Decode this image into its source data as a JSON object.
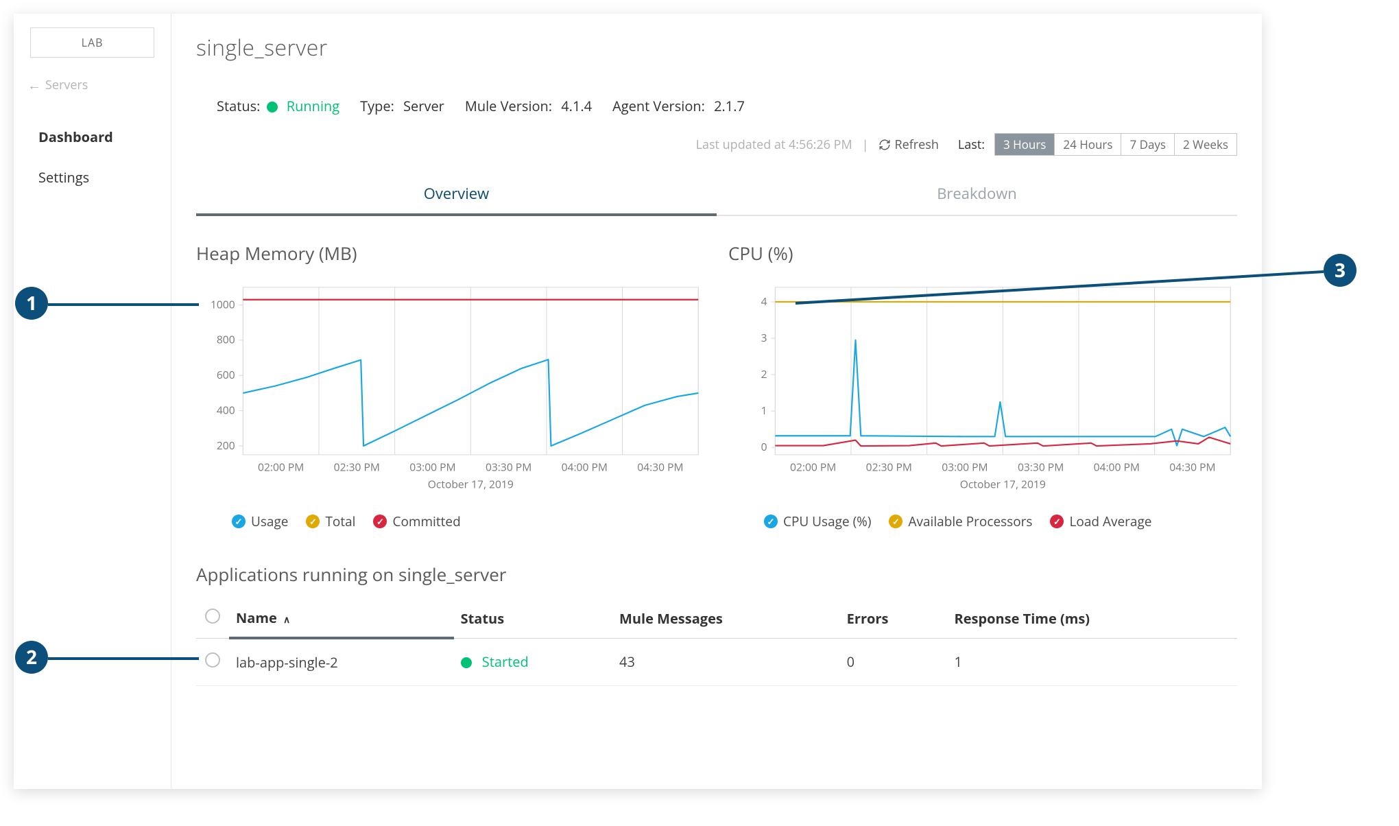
{
  "sidebar": {
    "env_label": "LAB",
    "back_label": "Servers",
    "items": [
      {
        "label": "Dashboard",
        "active": true
      },
      {
        "label": "Settings",
        "active": false
      }
    ]
  },
  "header": {
    "title": "single_server",
    "status_label": "Status:",
    "status_value": "Running",
    "status_color": "#00c176",
    "type_label": "Type:",
    "type_value": "Server",
    "mule_label": "Mule Version:",
    "mule_value": "4.1.4",
    "agent_label": "Agent Version:",
    "agent_value": "2.1.7",
    "updated_text": "Last updated at 4:56:26 PM",
    "refresh_label": "Refresh",
    "last_label": "Last:",
    "range_options": [
      "3 Hours",
      "24 Hours",
      "7 Days",
      "2 Weeks"
    ],
    "range_active_index": 0
  },
  "tabs": {
    "overview": "Overview",
    "breakdown": "Breakdown",
    "active": "overview"
  },
  "heap_chart": {
    "title": "Heap Memory (MB)",
    "ylim": [
      150,
      1100
    ],
    "yticks": [
      200,
      400,
      600,
      800,
      1000
    ],
    "xticks": [
      "02:00 PM",
      "02:30 PM",
      "03:00 PM",
      "03:30 PM",
      "04:00 PM",
      "04:30 PM"
    ],
    "date_label": "October 17, 2019",
    "series": {
      "usage": {
        "color": "#19a6e3",
        "points": [
          [
            0,
            500
          ],
          [
            12,
            540
          ],
          [
            24,
            590
          ],
          [
            34,
            640
          ],
          [
            44,
            688
          ],
          [
            45,
            200
          ],
          [
            56,
            280
          ],
          [
            68,
            370
          ],
          [
            80,
            460
          ],
          [
            92,
            555
          ],
          [
            104,
            640
          ],
          [
            114,
            690
          ],
          [
            115,
            200
          ],
          [
            126,
            270
          ],
          [
            138,
            350
          ],
          [
            150,
            430
          ],
          [
            162,
            480
          ],
          [
            170,
            500
          ]
        ]
      },
      "total": {
        "color": "#e0a800",
        "value_const": null
      },
      "committed": {
        "color": "#d7263d",
        "value_const": 1030
      }
    },
    "legend": [
      {
        "label": "Usage",
        "color": "#19a6e3"
      },
      {
        "label": "Total",
        "color": "#e0a800"
      },
      {
        "label": "Committed",
        "color": "#d7263d"
      }
    ]
  },
  "cpu_chart": {
    "title": "CPU (%)",
    "ylim": [
      -0.2,
      4.4
    ],
    "yticks": [
      0,
      1,
      2,
      3,
      4
    ],
    "xticks": [
      "02:00 PM",
      "02:30 PM",
      "03:00 PM",
      "03:30 PM",
      "04:00 PM",
      "04:30 PM"
    ],
    "date_label": "October 17, 2019",
    "series": {
      "cpu_usage": {
        "color": "#19a6e3",
        "points": [
          [
            0,
            0.32
          ],
          [
            20,
            0.32
          ],
          [
            28,
            0.32
          ],
          [
            30,
            2.95
          ],
          [
            32,
            0.32
          ],
          [
            70,
            0.3
          ],
          [
            82,
            0.3
          ],
          [
            84,
            1.25
          ],
          [
            86,
            0.3
          ],
          [
            120,
            0.3
          ],
          [
            142,
            0.3
          ],
          [
            148,
            0.5
          ],
          [
            150,
            0.05
          ],
          [
            152,
            0.5
          ],
          [
            160,
            0.3
          ],
          [
            168,
            0.55
          ],
          [
            170,
            0.3
          ]
        ]
      },
      "available_processors": {
        "color": "#e0a800",
        "value_const": 4.0
      },
      "load_average": {
        "color": "#d7263d",
        "points": [
          [
            0,
            0.05
          ],
          [
            18,
            0.05
          ],
          [
            30,
            0.2
          ],
          [
            32,
            0.04
          ],
          [
            50,
            0.05
          ],
          [
            60,
            0.12
          ],
          [
            62,
            0.04
          ],
          [
            78,
            0.12
          ],
          [
            80,
            0.04
          ],
          [
            98,
            0.12
          ],
          [
            100,
            0.04
          ],
          [
            118,
            0.12
          ],
          [
            120,
            0.04
          ],
          [
            140,
            0.1
          ],
          [
            150,
            0.18
          ],
          [
            158,
            0.1
          ],
          [
            162,
            0.28
          ],
          [
            170,
            0.1
          ]
        ]
      }
    },
    "legend": [
      {
        "label": "CPU Usage (%)",
        "color": "#19a6e3"
      },
      {
        "label": "Available Processors",
        "color": "#e0a800"
      },
      {
        "label": "Load Average",
        "color": "#d7263d"
      }
    ]
  },
  "apps": {
    "title": "Applications running on single_server",
    "columns": [
      "Name",
      "Status",
      "Mule Messages",
      "Errors",
      "Response Time (ms)"
    ],
    "sort_column_index": 0,
    "rows": [
      {
        "name": "lab-app-single-2",
        "status": "Started",
        "status_color": "#00c176",
        "messages": "43",
        "errors": "0",
        "response": "1"
      }
    ]
  },
  "callouts": {
    "1": {
      "bubble_color": "#0b4f7a"
    },
    "2": {
      "bubble_color": "#0b4f7a"
    },
    "3": {
      "bubble_color": "#0b4f7a"
    }
  },
  "colors": {
    "grid": "#d8d8d8",
    "axis_text": "#7a7a7a",
    "callout_line": "#0b4f7a"
  }
}
